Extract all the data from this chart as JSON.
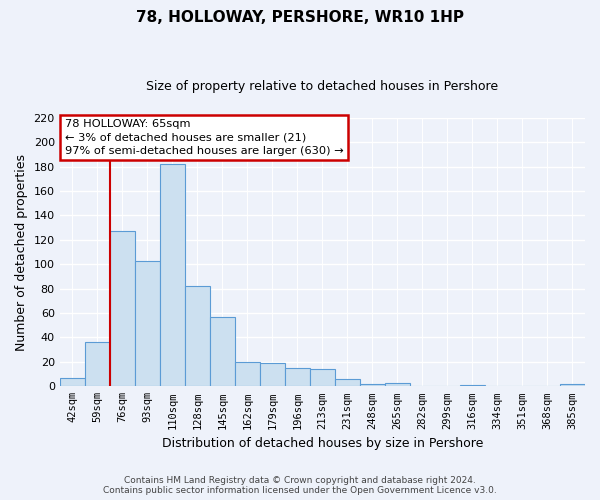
{
  "title": "78, HOLLOWAY, PERSHORE, WR10 1HP",
  "subtitle": "Size of property relative to detached houses in Pershore",
  "xlabel": "Distribution of detached houses by size in Pershore",
  "ylabel": "Number of detached properties",
  "categories": [
    "42sqm",
    "59sqm",
    "76sqm",
    "93sqm",
    "110sqm",
    "128sqm",
    "145sqm",
    "162sqm",
    "179sqm",
    "196sqm",
    "213sqm",
    "231sqm",
    "248sqm",
    "265sqm",
    "282sqm",
    "299sqm",
    "316sqm",
    "334sqm",
    "351sqm",
    "368sqm",
    "385sqm"
  ],
  "values": [
    7,
    36,
    127,
    103,
    182,
    82,
    57,
    20,
    19,
    15,
    14,
    6,
    2,
    3,
    0,
    0,
    1,
    0,
    0,
    0,
    2
  ],
  "bar_color_fill": "#cce0f0",
  "bar_color_edge": "#5b9bd5",
  "annotation_line1": "78 HOLLOWAY: 65sqm",
  "annotation_line2": "← 3% of detached houses are smaller (21)",
  "annotation_line3": "97% of semi-detached houses are larger (630) →",
  "annotation_box_color": "#ffffff",
  "annotation_box_edge": "#cc0000",
  "red_line_color": "#cc0000",
  "ylim": [
    0,
    220
  ],
  "yticks": [
    0,
    20,
    40,
    60,
    80,
    100,
    120,
    140,
    160,
    180,
    200,
    220
  ],
  "footer_line1": "Contains HM Land Registry data © Crown copyright and database right 2024.",
  "footer_line2": "Contains public sector information licensed under the Open Government Licence v3.0.",
  "bg_color": "#eef2fa",
  "grid_color": "#d0d8f0",
  "title_fontsize": 11,
  "subtitle_fontsize": 9
}
